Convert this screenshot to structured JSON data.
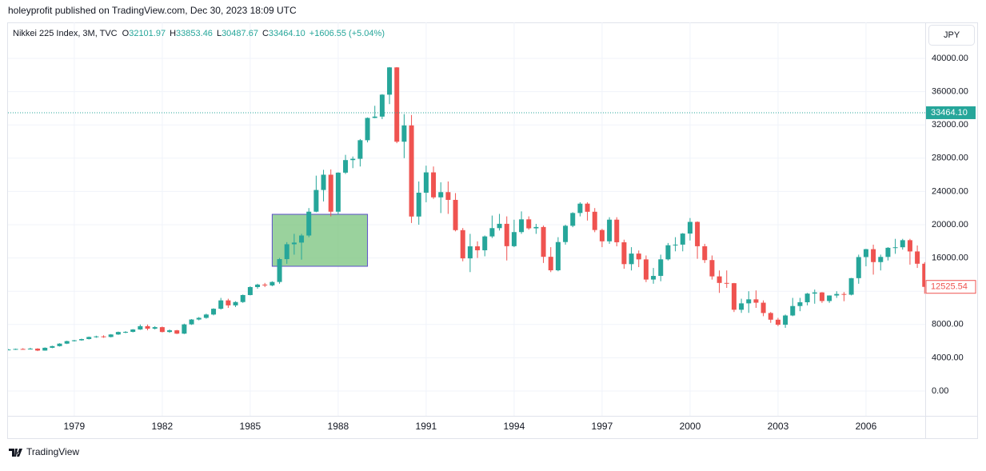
{
  "header": {
    "published": "holeyprofit published on TradingView.com, Dec 30, 2023 18:09 UTC",
    "logo": "TradingView"
  },
  "chart_data": {
    "type": "candlestick",
    "title": "Nikkei 225 Index, 3M, TVC",
    "legend_values": [
      {
        "label": "O",
        "value": "32101.97"
      },
      {
        "label": "H",
        "value": "33853.46"
      },
      {
        "label": "L",
        "value": "30487.67"
      },
      {
        "label": "C",
        "value": "33464.10"
      }
    ],
    "change": "+1606.55 (+5.04%)",
    "currency": "JPY",
    "up_color": "#26a69a",
    "down_color": "#ef5350",
    "grid": true,
    "xlim": [
      1976.74,
      2008.02
    ],
    "xticks": [
      1979,
      1982,
      1985,
      1988,
      1991,
      1994,
      1997,
      2000,
      2003,
      2006
    ],
    "ylim": [
      -2981,
      44327
    ],
    "yticks": [
      {
        "value": 0,
        "label": "0.00"
      },
      {
        "value": 4000,
        "label": "4000.00"
      },
      {
        "value": 8000,
        "label": "8000.00"
      },
      {
        "value": 12000,
        "label": "12000.00"
      },
      {
        "value": 16000,
        "label": "16000.00"
      },
      {
        "value": 20000,
        "label": "20000.00"
      },
      {
        "value": 24000,
        "label": "24000.00"
      },
      {
        "value": 28000,
        "label": "28000.00"
      },
      {
        "value": 32000,
        "label": "32000.00"
      },
      {
        "value": 36000,
        "label": "36000.00"
      },
      {
        "value": 40000,
        "label": "40000.00"
      }
    ],
    "price_line": {
      "value": 33464.1,
      "label": "33464.10",
      "color": "#26a69a"
    },
    "last_price": {
      "value": 12525.54,
      "label": "12525.54",
      "color": "#ef5350"
    },
    "rect_annotation": {
      "x": [
        1985.75,
        1989.0
      ],
      "y": [
        15000,
        21250
      ],
      "color": "#81c784",
      "border": "#5b4fc9"
    },
    "x": [
      1976.75,
      1977,
      1977.25,
      1977.5,
      1977.75,
      1978,
      1978.25,
      1978.5,
      1978.75,
      1979,
      1979.25,
      1979.5,
      1979.75,
      1980,
      1980.25,
      1980.5,
      1980.75,
      1981,
      1981.25,
      1981.5,
      1981.75,
      1982,
      1982.25,
      1982.5,
      1982.75,
      1983,
      1983.25,
      1983.5,
      1983.75,
      1984,
      1984.25,
      1984.5,
      1984.75,
      1985,
      1985.25,
      1985.5,
      1985.75,
      1986,
      1986.25,
      1986.5,
      1986.75,
      1987,
      1987.25,
      1987.5,
      1987.75,
      1988,
      1988.25,
      1988.5,
      1988.75,
      1989,
      1989.25,
      1989.5,
      1989.75,
      1990,
      1990.25,
      1990.5,
      1990.75,
      1991,
      1991.25,
      1991.5,
      1991.75,
      1992,
      1992.25,
      1992.5,
      1992.75,
      1993,
      1993.25,
      1993.5,
      1993.75,
      1994,
      1994.25,
      1994.5,
      1994.75,
      1995,
      1995.25,
      1995.5,
      1995.75,
      1996,
      1996.25,
      1996.5,
      1996.75,
      1997,
      1997.25,
      1997.5,
      1997.75,
      1998,
      1998.25,
      1998.5,
      1998.75,
      1999,
      1999.25,
      1999.5,
      1999.75,
      2000,
      2000.25,
      2000.5,
      2000.75,
      2001,
      2001.25,
      2001.5,
      2001.75,
      2002,
      2002.25,
      2002.5,
      2002.75,
      2003,
      2003.25,
      2003.5,
      2003.75,
      2004,
      2004.25,
      2004.5,
      2004.75,
      2005,
      2005.25,
      2005.5,
      2005.75,
      2006,
      2006.25,
      2006.5,
      2006.75,
      2007,
      2007.25,
      2007.5,
      2007.75,
      2008
    ],
    "open": [
      4950,
      4990,
      5060,
      5020,
      5100,
      4866,
      5200,
      5400,
      5700,
      6000,
      6100,
      6250,
      6500,
      6569,
      6500,
      6800,
      7100,
      7116,
      7400,
      7800,
      7500,
      7681,
      7100,
      7300,
      6900,
      8016,
      8600,
      8800,
      9200,
      9893,
      10900,
      10300,
      10700,
      11542,
      12500,
      12800,
      12700,
      13113,
      15860,
      17650,
      17850,
      18701,
      21566,
      24176,
      26011,
      21564,
      26260,
      27769,
      27923,
      30159,
      32838,
      33000,
      35637,
      38916,
      29980,
      31940,
      20984,
      23849,
      26292,
      23290,
      23916,
      22984,
      19346,
      15951,
      17399,
      16925,
      18591,
      19590,
      20106,
      17417,
      19112,
      20644,
      19564,
      19723,
      16140,
      14517,
      17913,
      19868,
      21407,
      22531,
      21556,
      19361,
      18003,
      20605,
      17888,
      15259,
      16527,
      15830,
      13406,
      13842,
      15837,
      17530,
      17605,
      18934,
      20337,
      17411,
      15747,
      13785,
      12999,
      12969,
      9774,
      10542,
      11024,
      10621,
      9383,
      8578,
      7972,
      9083,
      10219,
      10676,
      11715,
      11858,
      10823,
      11488,
      11668,
      11584,
      13574,
      16111,
      17059,
      15505,
      16127,
      17225,
      17287,
      18138,
      16785,
      15307
    ],
    "high": [
      5050,
      5100,
      5150,
      5200,
      5150,
      5250,
      5450,
      5750,
      6050,
      6150,
      6300,
      6550,
      6650,
      6700,
      6850,
      7150,
      7200,
      7450,
      8000,
      8000,
      7800,
      7750,
      7400,
      7350,
      8100,
      8650,
      8900,
      9300,
      9950,
      11200,
      11100,
      10800,
      11600,
      12600,
      12900,
      13000,
      13200,
      16000,
      17900,
      18900,
      18900,
      22000,
      25900,
      26600,
      26650,
      26300,
      28400,
      28200,
      30300,
      32900,
      34300,
      35700,
      38957,
      38950,
      33300,
      33200,
      25200,
      27100,
      27000,
      25100,
      25200,
      23800,
      19600,
      18900,
      18000,
      18700,
      21100,
      21300,
      21000,
      20600,
      21600,
      21000,
      20100,
      19900,
      17300,
      18500,
      20000,
      21500,
      22700,
      22700,
      22000,
      19500,
      20900,
      20900,
      18200,
      17300,
      16900,
      16300,
      14800,
      16400,
      17800,
      18500,
      19000,
      20800,
      20400,
      17700,
      16300,
      14500,
      14500,
      13000,
      11100,
      12000,
      12100,
      10900,
      9500,
      8800,
      9200,
      11200,
      11200,
      11800,
      12200,
      11900,
      11500,
      12000,
      11900,
      13600,
      16400,
      17100,
      17600,
      16400,
      17300,
      18300,
      18300,
      18300,
      17500,
      15500
    ],
    "low": [
      4900,
      4950,
      4980,
      4990,
      4800,
      4850,
      5150,
      5350,
      5650,
      5950,
      6050,
      6200,
      6400,
      6400,
      6450,
      6750,
      6950,
      7050,
      7350,
      7300,
      7400,
      7050,
      7000,
      6850,
      6850,
      7950,
      8500,
      8700,
      9100,
      9800,
      10000,
      10100,
      10600,
      11500,
      12300,
      12500,
      12600,
      12900,
      15300,
      16400,
      15800,
      18500,
      21500,
      22800,
      21000,
      21200,
      26100,
      26800,
      27000,
      29900,
      32800,
      32700,
      34500,
      29800,
      28000,
      20200,
      20000,
      22700,
      23100,
      21400,
      21300,
      19200,
      15600,
      14300,
      16000,
      16200,
      18400,
      19300,
      15700,
      17300,
      18900,
      19400,
      18900,
      15400,
      14300,
      14400,
      17600,
      19700,
      21000,
      20500,
      19100,
      17300,
      17700,
      17400,
      14700,
      14500,
      14900,
      13100,
      12900,
      13200,
      15700,
      16800,
      16800,
      18100,
      15900,
      15400,
      13400,
      11800,
      12400,
      9500,
      9400,
      9400,
      10000,
      9000,
      8200,
      7800,
      7600,
      9000,
      9600,
      10300,
      10500,
      10600,
      10600,
      11200,
      10800,
      11500,
      12900,
      15000,
      14000,
      14500,
      15700,
      16500,
      17000,
      15200,
      14800,
      11700
    ],
    "close": [
      4990,
      5060,
      5020,
      5100,
      4866,
      5200,
      5400,
      5700,
      6000,
      6100,
      6250,
      6500,
      6569,
      6500,
      6800,
      7100,
      7116,
      7400,
      7800,
      7500,
      7681,
      7100,
      7300,
      6900,
      8016,
      8600,
      8800,
      9200,
      9893,
      10900,
      10300,
      10700,
      11542,
      12500,
      12800,
      12700,
      13113,
      15860,
      17650,
      17850,
      18701,
      21566,
      24176,
      26011,
      21564,
      26260,
      27769,
      27923,
      30159,
      32838,
      33000,
      35637,
      38916,
      29980,
      31940,
      20984,
      23849,
      26292,
      23290,
      23916,
      22984,
      19346,
      15951,
      17399,
      16925,
      18591,
      19590,
      20106,
      17417,
      19112,
      20644,
      19564,
      19723,
      16140,
      14517,
      17913,
      19868,
      21407,
      22531,
      21556,
      19361,
      18003,
      20605,
      17888,
      15259,
      16527,
      15830,
      13406,
      13842,
      15837,
      17530,
      17605,
      18934,
      20337,
      17411,
      15747,
      13785,
      12999,
      12969,
      9774,
      10542,
      11024,
      10621,
      9383,
      8578,
      7972,
      9083,
      10219,
      10676,
      11715,
      11858,
      10823,
      11488,
      11668,
      11584,
      13574,
      16111,
      17059,
      15505,
      16127,
      17225,
      17287,
      18138,
      16785,
      15307,
      12525.54
    ]
  }
}
